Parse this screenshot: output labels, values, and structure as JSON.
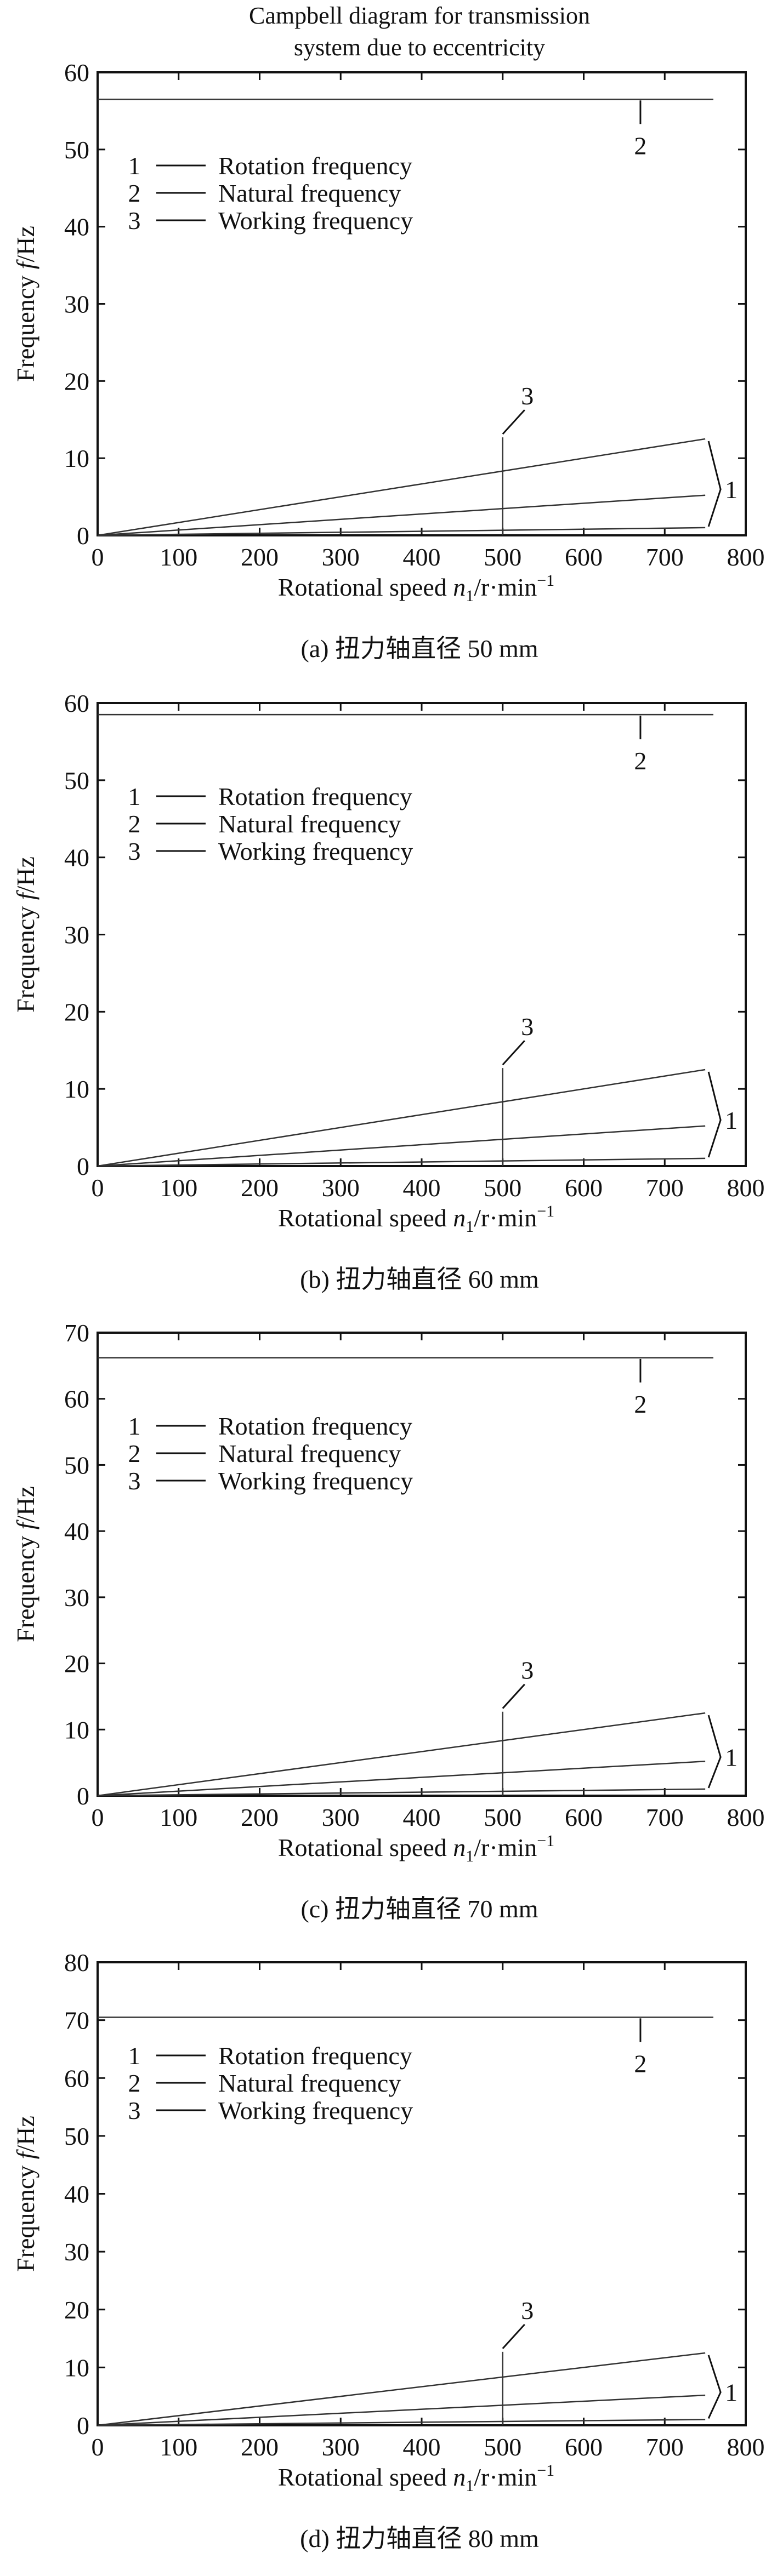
{
  "title_line1": "Campbell diagram for transmission",
  "title_line2": "system due to eccentricity",
  "xlabel_prefix": "Rotational speed ",
  "xlabel_var": "n",
  "xlabel_sub": "1",
  "xlabel_unit": "/r·min",
  "xlabel_sup": "−1",
  "ylabel_prefix": "Frequency ",
  "ylabel_var": "f",
  "ylabel_unit": "/Hz",
  "legend": [
    {
      "num": "1",
      "label": "Rotation frequency"
    },
    {
      "num": "2",
      "label": "Natural frequency"
    },
    {
      "num": "3",
      "label": "Working frequency"
    }
  ],
  "line_color": "#333333",
  "chart_data": [
    {
      "type": "line",
      "caption": "(a) 扭力轴直径 50 mm",
      "xlim": [
        0,
        800
      ],
      "ylim": [
        0,
        60
      ],
      "xticks": [
        0,
        100,
        200,
        300,
        400,
        500,
        600,
        700,
        800
      ],
      "yticks": [
        0,
        10,
        20,
        30,
        40,
        50,
        60
      ],
      "grid": false,
      "legend_position": "top-left",
      "natural_frequency": 56.5,
      "rotation_lines": [
        {
          "x": [
            0,
            750
          ],
          "y": [
            0,
            12.5
          ]
        },
        {
          "x": [
            0,
            750
          ],
          "y": [
            0,
            5.2
          ]
        },
        {
          "x": [
            0,
            750
          ],
          "y": [
            0,
            1.0
          ]
        }
      ],
      "working_speed": 500,
      "working_top": 12.7,
      "labels": {
        "line1": "1",
        "line2": "2",
        "line3": "3"
      }
    },
    {
      "type": "line",
      "caption": "(b) 扭力轴直径 60 mm",
      "xlim": [
        0,
        800
      ],
      "ylim": [
        0,
        60
      ],
      "xticks": [
        0,
        100,
        200,
        300,
        400,
        500,
        600,
        700,
        800
      ],
      "yticks": [
        0,
        10,
        20,
        30,
        40,
        50,
        60
      ],
      "grid": false,
      "legend_position": "top-left",
      "natural_frequency": 58.5,
      "rotation_lines": [
        {
          "x": [
            0,
            750
          ],
          "y": [
            0,
            12.5
          ]
        },
        {
          "x": [
            0,
            750
          ],
          "y": [
            0,
            5.2
          ]
        },
        {
          "x": [
            0,
            750
          ],
          "y": [
            0,
            1.0
          ]
        }
      ],
      "working_speed": 500,
      "working_top": 12.7,
      "labels": {
        "line1": "1",
        "line2": "2",
        "line3": "3"
      }
    },
    {
      "type": "line",
      "caption": "(c) 扭力轴直径 70 mm",
      "xlim": [
        0,
        800
      ],
      "ylim": [
        0,
        70
      ],
      "xticks": [
        0,
        100,
        200,
        300,
        400,
        500,
        600,
        700,
        800
      ],
      "yticks": [
        0,
        10,
        20,
        30,
        40,
        50,
        60,
        70
      ],
      "grid": false,
      "legend_position": "top-left",
      "natural_frequency": 66.2,
      "rotation_lines": [
        {
          "x": [
            0,
            750
          ],
          "y": [
            0,
            12.5
          ]
        },
        {
          "x": [
            0,
            750
          ],
          "y": [
            0,
            5.2
          ]
        },
        {
          "x": [
            0,
            750
          ],
          "y": [
            0,
            1.0
          ]
        }
      ],
      "working_speed": 500,
      "working_top": 12.7,
      "labels": {
        "line1": "1",
        "line2": "2",
        "line3": "3"
      }
    },
    {
      "type": "line",
      "caption": "(d) 扭力轴直径 80 mm",
      "xlim": [
        0,
        800
      ],
      "ylim": [
        0,
        80
      ],
      "xticks": [
        0,
        100,
        200,
        300,
        400,
        500,
        600,
        700,
        800
      ],
      "yticks": [
        0,
        10,
        20,
        30,
        40,
        50,
        60,
        70,
        80
      ],
      "grid": false,
      "legend_position": "top-left",
      "natural_frequency": 70.5,
      "rotation_lines": [
        {
          "x": [
            0,
            750
          ],
          "y": [
            0,
            12.5
          ]
        },
        {
          "x": [
            0,
            750
          ],
          "y": [
            0,
            5.2
          ]
        },
        {
          "x": [
            0,
            750
          ],
          "y": [
            0,
            1.0
          ]
        }
      ],
      "working_speed": 500,
      "working_top": 12.7,
      "labels": {
        "line1": "1",
        "line2": "2",
        "line3": "3"
      }
    }
  ]
}
